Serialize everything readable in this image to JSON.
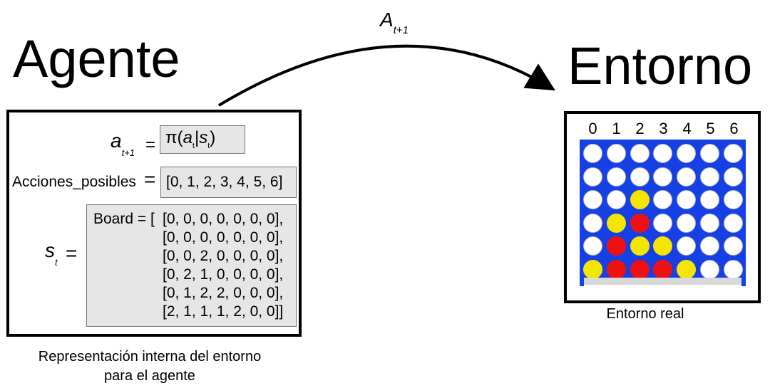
{
  "titles": {
    "agent": "Agente",
    "environment": "Entorno"
  },
  "action": {
    "symbol": "A",
    "subscript": "t+1"
  },
  "agent_panel": {
    "policy": {
      "lhs_symbol": "a",
      "lhs_subscript": "t+1",
      "equals": "=",
      "rhs_prefix": "π(",
      "rhs_a": "a",
      "rhs_a_sub": "t",
      "rhs_bar": "|",
      "rhs_s": "s",
      "rhs_s_sub": "t",
      "rhs_suffix": ")"
    },
    "actions": {
      "label": "Acciones_posibles",
      "equals": "=",
      "value": "[0, 1, 2, 3, 4, 5, 6]"
    },
    "state": {
      "lhs_symbol": "s",
      "lhs_subscript": "t",
      "equals": "=",
      "board_prefix": "Board = [",
      "rows": [
        "[0, 0, 0, 0, 0, 0, 0],",
        "[0, 0, 0, 0, 0, 0, 0],",
        "[0, 0, 2, 0, 0, 0, 0],",
        "[0, 2, 1, 0, 0, 0, 0],",
        "[0, 1, 2, 2, 0, 0, 0],",
        "[2, 1, 1, 1, 2, 0, 0]]"
      ]
    },
    "caption_line1": "Representación interna del entorno",
    "caption_line2": "para el agente"
  },
  "environment_panel": {
    "column_labels": [
      "0",
      "1",
      "2",
      "3",
      "4",
      "5",
      "6"
    ],
    "board": [
      [
        0,
        0,
        0,
        0,
        0,
        0,
        0
      ],
      [
        0,
        0,
        0,
        0,
        0,
        0,
        0
      ],
      [
        0,
        0,
        2,
        0,
        0,
        0,
        0
      ],
      [
        0,
        2,
        1,
        0,
        0,
        0,
        0
      ],
      [
        0,
        1,
        2,
        2,
        0,
        0,
        0
      ],
      [
        2,
        1,
        1,
        1,
        2,
        0,
        0
      ]
    ],
    "caption": "Entorno real"
  },
  "colors": {
    "board_blue": "#1540e6",
    "empty": "#ffffff",
    "player_1": "#ee1111",
    "player_2": "#f5e600"
  }
}
